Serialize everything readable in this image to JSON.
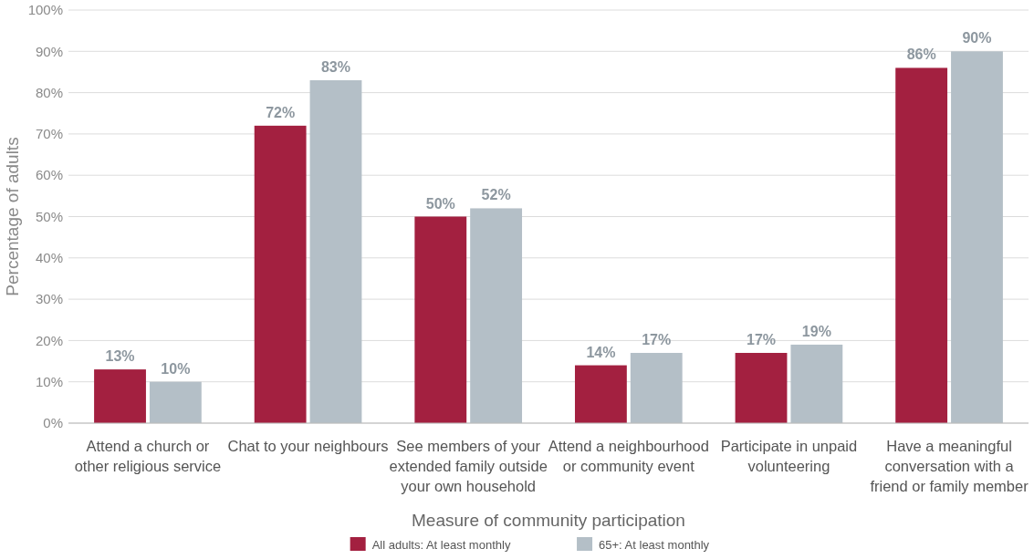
{
  "chart_data": {
    "type": "bar",
    "xlabel": "Measure of community participation",
    "ylabel": "Percentage of adults",
    "categories": [
      "Attend a church or other religious service",
      "Chat to your neighbours",
      "See members of your extended family outside your own household",
      "Attend a neighbourhood or community event",
      "Participate in unpaid volunteering",
      "Have a meaningful conversation with a friend or family member"
    ],
    "series": [
      {
        "name": "All adults: At least monthly",
        "color": "#a32040",
        "values": [
          13,
          72,
          50,
          14,
          17,
          86
        ],
        "value_labels": [
          "13%",
          "72%",
          "50%",
          "14%",
          "17%",
          "86%"
        ]
      },
      {
        "name": "65+: At least monthly",
        "color": "#b4bfc7",
        "values": [
          10,
          83,
          52,
          17,
          19,
          90
        ],
        "value_labels": [
          "10%",
          "83%",
          "52%",
          "17%",
          "19%",
          "90%"
        ]
      }
    ],
    "ylim": [
      0,
      100
    ],
    "yticks": [
      {
        "value": 0,
        "label": "0%"
      },
      {
        "value": 10,
        "label": "10%"
      },
      {
        "value": 20,
        "label": "20%"
      },
      {
        "value": 30,
        "label": "30%"
      },
      {
        "value": 40,
        "label": "40%"
      },
      {
        "value": 50,
        "label": "50%"
      },
      {
        "value": 60,
        "label": "60%"
      },
      {
        "value": 70,
        "label": "70%"
      },
      {
        "value": 80,
        "label": "80%"
      },
      {
        "value": 90,
        "label": "90%"
      },
      {
        "value": 100,
        "label": "100%"
      }
    ],
    "grid": "y",
    "legend": "bottom"
  }
}
